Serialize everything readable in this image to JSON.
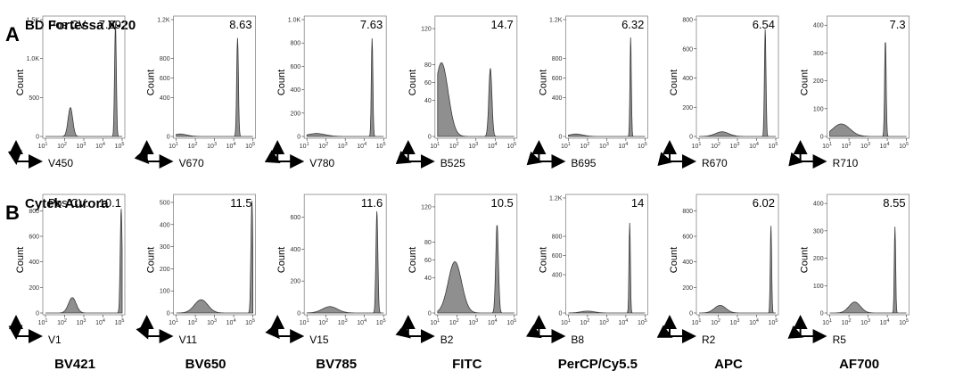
{
  "panels": [
    {
      "letter": "A",
      "title": "BD Fortessa X-20",
      "pos_cv_label": "Pos CV:",
      "y_axis_label": "Count",
      "plots": [
        {
          "channel": "V450",
          "cv": "7.69",
          "ymax": 1500,
          "yticks": [
            "0",
            "500",
            "1.0K",
            "1.5K"
          ],
          "ytick_values": [
            0,
            500,
            1000,
            1500
          ],
          "neg": {
            "center": 2.3,
            "width": 0.12,
            "height": 370
          },
          "pos": {
            "center": 4.65,
            "width": 0.045,
            "height": 1450
          }
        },
        {
          "channel": "V670",
          "cv": "8.63",
          "ymax": 1200,
          "yticks": [
            "0",
            "400",
            "600",
            "800",
            "1.2K"
          ],
          "ytick_values": [
            0,
            400,
            600,
            800,
            1200
          ],
          "neg": {
            "center": 1.2,
            "width": 0.35,
            "height": 25
          },
          "pos": {
            "center": 4.2,
            "width": 0.045,
            "height": 1010
          }
        },
        {
          "channel": "V780",
          "cv": "7.63",
          "ymax": 1000,
          "yticks": [
            "0",
            "200",
            "400",
            "600",
            "800",
            "1.0K"
          ],
          "ytick_values": [
            0,
            200,
            400,
            600,
            800,
            1000
          ],
          "neg": {
            "center": 1.5,
            "width": 0.45,
            "height": 25
          },
          "pos": {
            "center": 4.4,
            "width": 0.04,
            "height": 840
          }
        },
        {
          "channel": "B525",
          "cv": "14.7",
          "ymax": 130,
          "yticks": [
            "0",
            "40",
            "60",
            "80",
            "120"
          ],
          "ytick_values": [
            0,
            40,
            60,
            80,
            120
          ],
          "neg": {
            "center": 1.2,
            "width": 0.35,
            "height": 82
          },
          "pos": {
            "center": 3.75,
            "width": 0.08,
            "height": 76
          }
        },
        {
          "channel": "B695",
          "cv": "6.32",
          "ymax": 1200,
          "yticks": [
            "0",
            "400",
            "600",
            "800",
            "1.2K"
          ],
          "ytick_values": [
            0,
            400,
            600,
            800,
            1200
          ],
          "neg": {
            "center": 1.4,
            "width": 0.35,
            "height": 25
          },
          "pos": {
            "center": 4.25,
            "width": 0.035,
            "height": 1030
          }
        },
        {
          "channel": "R670",
          "cv": "6.54",
          "ymax": 800,
          "yticks": [
            "0",
            "200",
            "400",
            "600",
            "800"
          ],
          "ytick_values": [
            0,
            200,
            400,
            600,
            800
          ],
          "neg": {
            "center": 2.2,
            "width": 0.35,
            "height": 32
          },
          "pos": {
            "center": 4.45,
            "width": 0.04,
            "height": 740
          }
        },
        {
          "channel": "R710",
          "cv": "7.3",
          "ymax": 420,
          "yticks": [
            "0",
            "100",
            "200",
            "300",
            "400"
          ],
          "ytick_values": [
            0,
            100,
            200,
            300,
            400
          ],
          "neg": {
            "center": 1.6,
            "width": 0.45,
            "height": 45
          },
          "pos": {
            "center": 3.9,
            "width": 0.04,
            "height": 350
          }
        }
      ]
    },
    {
      "letter": "B",
      "title": "Cytek Aurora",
      "pos_cv_label": "Pos CV:",
      "y_axis_label": "Count",
      "plots": [
        {
          "channel": "V1",
          "cv": "10.1",
          "ymax": 900,
          "yticks": [
            "0",
            "200",
            "400",
            "600",
            "800"
          ],
          "ytick_values": [
            0,
            200,
            400,
            600,
            800
          ],
          "neg": {
            "center": 2.4,
            "width": 0.2,
            "height": 120
          },
          "pos": {
            "center": 4.95,
            "width": 0.05,
            "height": 820
          }
        },
        {
          "channel": "V11",
          "cv": "11.5",
          "ymax": 520,
          "yticks": [
            "0",
            "100",
            "200",
            "300",
            "400",
            "500"
          ],
          "ytick_values": [
            0,
            100,
            200,
            300,
            400,
            500
          ],
          "neg": {
            "center": 2.3,
            "width": 0.35,
            "height": 60
          },
          "pos": {
            "center": 4.95,
            "width": 0.05,
            "height": 510
          }
        },
        {
          "channel": "V15",
          "cv": "11.6",
          "ymax": 720,
          "yticks": [
            "0",
            "200",
            "400",
            "600"
          ],
          "ytick_values": [
            0,
            200,
            400,
            600
          ],
          "neg": {
            "center": 2.2,
            "width": 0.4,
            "height": 40
          },
          "pos": {
            "center": 4.65,
            "width": 0.05,
            "height": 640
          }
        },
        {
          "channel": "B2",
          "cv": "10.5",
          "ymax": 130,
          "yticks": [
            "0",
            "40",
            "60",
            "80",
            "120"
          ],
          "ytick_values": [
            0,
            40,
            60,
            80,
            120
          ],
          "neg": {
            "center": 1.9,
            "width": 0.35,
            "height": 58
          },
          "pos": {
            "center": 4.1,
            "width": 0.07,
            "height": 100
          }
        },
        {
          "channel": "B8",
          "cv": "14",
          "ymax": 1200,
          "yticks": [
            "0",
            "400",
            "600",
            "800",
            "1.2K"
          ],
          "ytick_values": [
            0,
            400,
            600,
            800,
            1200
          ],
          "neg": {
            "center": 2.0,
            "width": 0.35,
            "height": 20
          },
          "pos": {
            "center": 4.2,
            "width": 0.035,
            "height": 940
          }
        },
        {
          "channel": "R2",
          "cv": "6.02",
          "ymax": 900,
          "yticks": [
            "0",
            "200",
            "400",
            "600",
            "800"
          ],
          "ytick_values": [
            0,
            200,
            400,
            600,
            800
          ],
          "neg": {
            "center": 2.1,
            "width": 0.3,
            "height": 60
          },
          "pos": {
            "center": 4.75,
            "width": 0.035,
            "height": 690
          }
        },
        {
          "channel": "R5",
          "cv": "8.55",
          "ymax": 420,
          "yticks": [
            "0",
            "100",
            "200",
            "300",
            "400"
          ],
          "ytick_values": [
            0,
            100,
            200,
            300,
            400
          ],
          "neg": {
            "center": 2.3,
            "width": 0.3,
            "height": 40
          },
          "pos": {
            "center": 4.4,
            "width": 0.035,
            "height": 315
          }
        }
      ]
    }
  ],
  "fluorochromes": [
    "BV421",
    "BV650",
    "BV785",
    "FITC",
    "PerCP/Cy5.5",
    "APC",
    "AF700"
  ],
  "x_tick_exponents": [
    "1",
    "2",
    "3",
    "4",
    "5"
  ],
  "x_tick_base": "10",
  "colors": {
    "fill": "#8f8f8f",
    "stroke": "#3a3a3a",
    "frame": "#888888"
  },
  "chart_data": {
    "type": "histogram",
    "x_scale": "log",
    "x_range": [
      10,
      100000
    ],
    "series_groups": [
      {
        "title": "BD Fortessa X-20",
        "channels": [
          "V450",
          "V670",
          "V780",
          "B525",
          "B695",
          "R670",
          "R710"
        ],
        "pos_cv": [
          7.69,
          8.63,
          7.63,
          14.7,
          6.32,
          6.54,
          7.3
        ]
      },
      {
        "title": "Cytek Aurora",
        "channels": [
          "V1",
          "V11",
          "V15",
          "B2",
          "B8",
          "R2",
          "R5"
        ],
        "pos_cv": [
          10.1,
          11.5,
          11.6,
          10.5,
          14,
          6.02,
          8.55
        ]
      }
    ],
    "fluorochromes": [
      "BV421",
      "BV650",
      "BV785",
      "FITC",
      "PerCP/Cy5.5",
      "APC",
      "AF700"
    ]
  }
}
